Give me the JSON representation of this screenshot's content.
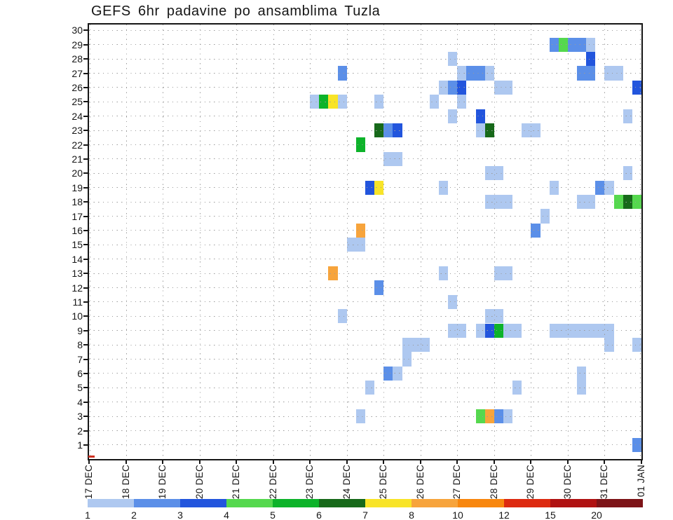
{
  "title": "GEFS 6hr padavine po ansamblima Tuzla",
  "chart_data": {
    "type": "heatmap",
    "title": "GEFS 6hr padavine po ansamblima Tuzla",
    "description": "GEFS ensemble members (y: 1-30) vs forecast time in 6-hour steps (x: 17 DEC to 01 JAN), colored boxes = 6hr precipitation amount per legend",
    "x_labels": [
      "17 DEC",
      "18 DEC",
      "19 DEC",
      "20 DEC",
      "21 DEC",
      "22 DEC",
      "23 DEC",
      "24 DEC",
      "25 DEC",
      "26 DEC",
      "27 DEC",
      "28 DEC",
      "29 DEC",
      "30 DEC",
      "31 DEC",
      "01 JAN"
    ],
    "slots_per_day": 4,
    "total_slots": 60,
    "y_axis": {
      "min": 1,
      "max": 30,
      "step": 1
    },
    "grid": "dotted horizontal line per member, dotted vertical line per day",
    "legend": {
      "position": "bottom",
      "tick_labels": [
        "1",
        "2",
        "3",
        "4",
        "5",
        "6",
        "7",
        "8",
        "10",
        "12",
        "15",
        "20"
      ],
      "colors": [
        "#aec8f0",
        "#5b8fe8",
        "#2255dd",
        "#55d84e",
        "#0db32a",
        "#17691a",
        "#f8e428",
        "#f7a43c",
        "#f8870e",
        "#dd2a10",
        "#b01212",
        "#7d1418"
      ]
    },
    "cells_format": "[member, slot_index_from_17DEC00Z, level_index_1_to_12]",
    "cells": [
      [
        29,
        50,
        2
      ],
      [
        29,
        51,
        4
      ],
      [
        29,
        52,
        2
      ],
      [
        29,
        53,
        2
      ],
      [
        29,
        54,
        1
      ],
      [
        28,
        39,
        1
      ],
      [
        28,
        54,
        3
      ],
      [
        27,
        27,
        2
      ],
      [
        27,
        40,
        1
      ],
      [
        27,
        41,
        2
      ],
      [
        27,
        42,
        2
      ],
      [
        27,
        43,
        1
      ],
      [
        27,
        53,
        2
      ],
      [
        27,
        54,
        2
      ],
      [
        27,
        56,
        1
      ],
      [
        27,
        57,
        1
      ],
      [
        26,
        38,
        1
      ],
      [
        26,
        39,
        2
      ],
      [
        26,
        40,
        3
      ],
      [
        26,
        44,
        1
      ],
      [
        26,
        45,
        1
      ],
      [
        26,
        59,
        3
      ],
      [
        25,
        24,
        1
      ],
      [
        25,
        25,
        5
      ],
      [
        25,
        26,
        7
      ],
      [
        25,
        27,
        1
      ],
      [
        25,
        31,
        1
      ],
      [
        25,
        37,
        1
      ],
      [
        25,
        40,
        1
      ],
      [
        24,
        39,
        1
      ],
      [
        24,
        42,
        3
      ],
      [
        24,
        58,
        1
      ],
      [
        23,
        31,
        6
      ],
      [
        23,
        32,
        2
      ],
      [
        23,
        33,
        3
      ],
      [
        23,
        42,
        1
      ],
      [
        23,
        43,
        6
      ],
      [
        23,
        47,
        1
      ],
      [
        23,
        48,
        1
      ],
      [
        22,
        29,
        5
      ],
      [
        21,
        32,
        1
      ],
      [
        21,
        33,
        1
      ],
      [
        20,
        43,
        1
      ],
      [
        20,
        44,
        1
      ],
      [
        20,
        58,
        1
      ],
      [
        19,
        30,
        3
      ],
      [
        19,
        31,
        7
      ],
      [
        19,
        38,
        1
      ],
      [
        19,
        50,
        1
      ],
      [
        19,
        55,
        2
      ],
      [
        19,
        56,
        1
      ],
      [
        18,
        43,
        1
      ],
      [
        18,
        44,
        1
      ],
      [
        18,
        45,
        1
      ],
      [
        18,
        53,
        1
      ],
      [
        18,
        54,
        1
      ],
      [
        18,
        57,
        4
      ],
      [
        18,
        58,
        6
      ],
      [
        18,
        59,
        4
      ],
      [
        17,
        49,
        1
      ],
      [
        16,
        29,
        8
      ],
      [
        16,
        48,
        2
      ],
      [
        15,
        28,
        1
      ],
      [
        15,
        29,
        1
      ],
      [
        13,
        26,
        8
      ],
      [
        13,
        38,
        1
      ],
      [
        13,
        44,
        1
      ],
      [
        13,
        45,
        1
      ],
      [
        12,
        31,
        2
      ],
      [
        11,
        39,
        1
      ],
      [
        10,
        27,
        1
      ],
      [
        10,
        43,
        1
      ],
      [
        10,
        44,
        1
      ],
      [
        9,
        39,
        1
      ],
      [
        9,
        40,
        1
      ],
      [
        9,
        42,
        1
      ],
      [
        9,
        43,
        3
      ],
      [
        9,
        44,
        5
      ],
      [
        9,
        45,
        1
      ],
      [
        9,
        46,
        1
      ],
      [
        9,
        50,
        1
      ],
      [
        9,
        51,
        1
      ],
      [
        9,
        52,
        1
      ],
      [
        9,
        53,
        1
      ],
      [
        9,
        54,
        1
      ],
      [
        9,
        55,
        1
      ],
      [
        9,
        56,
        1
      ],
      [
        8,
        34,
        1
      ],
      [
        8,
        35,
        1
      ],
      [
        8,
        36,
        1
      ],
      [
        8,
        56,
        1
      ],
      [
        8,
        59,
        1
      ],
      [
        7,
        34,
        1
      ],
      [
        6,
        32,
        2
      ],
      [
        6,
        33,
        1
      ],
      [
        6,
        53,
        1
      ],
      [
        5,
        30,
        1
      ],
      [
        5,
        46,
        1
      ],
      [
        5,
        53,
        1
      ],
      [
        3,
        29,
        1
      ],
      [
        3,
        42,
        4
      ],
      [
        3,
        43,
        8
      ],
      [
        3,
        44,
        2
      ],
      [
        3,
        45,
        1
      ],
      [
        1,
        59,
        2
      ]
    ]
  }
}
